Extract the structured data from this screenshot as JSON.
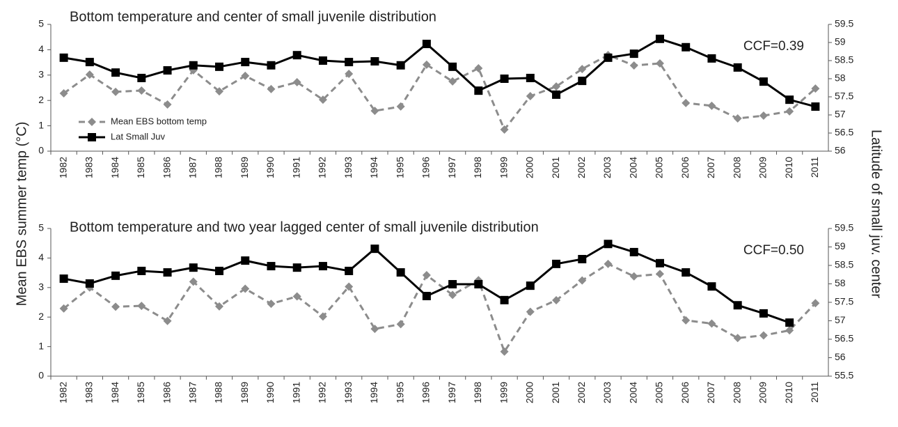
{
  "ylabel": "Mean EBS summer temp (°C)",
  "y2label": "Latitude of small juv. center",
  "chart_data": [
    {
      "type": "line",
      "title": "Bottom temperature and center of small juvenile distribution",
      "annotation": "CCF=0.39",
      "categories": [
        "1982",
        "1983",
        "1984",
        "1985",
        "1986",
        "1987",
        "1988",
        "1989",
        "1990",
        "1991",
        "1992",
        "1993",
        "1994",
        "1995",
        "1996",
        "1997",
        "1998",
        "1999",
        "2000",
        "2001",
        "2002",
        "2003",
        "2004",
        "2005",
        "2006",
        "2007",
        "2008",
        "2009",
        "2010",
        "2011"
      ],
      "ylim": [
        0,
        5
      ],
      "yticks": [
        0,
        1,
        2,
        3,
        4,
        5
      ],
      "y2lim": [
        56,
        59.5
      ],
      "y2ticks": [
        56,
        56.5,
        57,
        57.5,
        58,
        58.5,
        59,
        59.5
      ],
      "legend": "lower left",
      "series": [
        {
          "name": "Mean EBS bottom temp",
          "color": "#8c8c8c",
          "dashed": true,
          "marker": "diamond",
          "values": [
            2.28,
            3.02,
            2.34,
            2.39,
            1.84,
            3.19,
            2.36,
            2.97,
            2.45,
            2.72,
            2.03,
            3.05,
            1.59,
            1.76,
            3.41,
            2.75,
            3.27,
            0.85,
            2.17,
            2.55,
            3.24,
            3.79,
            3.38,
            3.46,
            1.9,
            1.79,
            1.29,
            1.4,
            1.57,
            2.47
          ]
        },
        {
          "name": "Lat Small Juv",
          "color": "#000000",
          "dashed": false,
          "marker": "square",
          "axis": "y2",
          "values": [
            58.58,
            58.46,
            58.17,
            58.02,
            58.23,
            58.37,
            58.33,
            58.46,
            58.37,
            58.65,
            58.5,
            58.46,
            58.48,
            58.37,
            58.96,
            58.33,
            57.67,
            58.0,
            58.02,
            57.56,
            57.94,
            58.58,
            58.69,
            59.1,
            58.87,
            58.56,
            58.31,
            57.92,
            57.42,
            57.23
          ]
        }
      ]
    },
    {
      "type": "line",
      "title": "Bottom temperature and two year lagged center of small juvenile distribution",
      "annotation": "CCF=0.50",
      "categories": [
        "1982",
        "1983",
        "1984",
        "1985",
        "1986",
        "1987",
        "1988",
        "1989",
        "1990",
        "1991",
        "1992",
        "1993",
        "1994",
        "1995",
        "1996",
        "1997",
        "1998",
        "1999",
        "2000",
        "2001",
        "2002",
        "2003",
        "2004",
        "2005",
        "2006",
        "2007",
        "2008",
        "2009",
        "2010",
        "2011"
      ],
      "ylim": [
        0,
        5
      ],
      "yticks": [
        0,
        1,
        2,
        3,
        4,
        5
      ],
      "y2lim": [
        55.5,
        59.5
      ],
      "y2ticks": [
        55.5,
        56,
        56.5,
        57,
        57.5,
        58,
        58.5,
        59,
        59.5
      ],
      "legend": false,
      "series": [
        {
          "color": "#8c8c8c",
          "dashed": true,
          "marker": "diamond",
          "values": [
            2.29,
            3.0,
            2.35,
            2.38,
            1.87,
            3.2,
            2.36,
            2.96,
            2.45,
            2.7,
            2.02,
            3.03,
            1.6,
            1.76,
            3.42,
            2.75,
            3.25,
            0.83,
            2.18,
            2.57,
            3.24,
            3.8,
            3.38,
            3.46,
            1.89,
            1.78,
            1.29,
            1.38,
            1.55,
            2.47
          ]
        },
        {
          "color": "#000000",
          "dashed": false,
          "marker": "square",
          "axis": "y2",
          "values": [
            58.14,
            58.01,
            58.22,
            58.35,
            58.31,
            58.44,
            58.35,
            58.63,
            58.48,
            58.44,
            58.48,
            58.35,
            58.95,
            58.31,
            57.67,
            57.99,
            57.99,
            57.56,
            57.95,
            58.54,
            58.67,
            59.08,
            58.86,
            58.56,
            58.31,
            57.93,
            57.42,
            57.2,
            56.95,
            null
          ]
        }
      ]
    }
  ]
}
